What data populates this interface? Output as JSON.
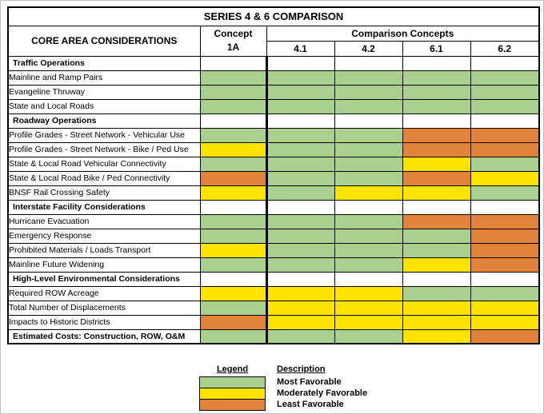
{
  "title": "SERIES 4 & 6 COMPARISON",
  "header": {
    "core": "CORE AREA CONSIDERATIONS",
    "concept_line1": "Concept",
    "concept_line2": "1A",
    "comparison": "Comparison Concepts",
    "columns": [
      "4.1",
      "4.2",
      "6.1",
      "6.2"
    ]
  },
  "colors": {
    "most": "#a9d08e",
    "moderate": "#ffe300",
    "least": "#e2833c",
    "none": "#ffffff"
  },
  "chart_data": {
    "type": "table",
    "title": "SERIES 4 & 6 COMPARISON",
    "columns": [
      "Concept 1A",
      "4.1",
      "4.2",
      "6.1",
      "6.2"
    ],
    "rating_scale": {
      "most": "Most Favorable",
      "moderate": "Moderately Favorable",
      "least": "Least Favorable",
      "none": "blank"
    },
    "rows": [
      {
        "type": "section",
        "label": "Traffic Operations",
        "cells": [
          "none",
          "none",
          "none",
          "none",
          "none"
        ]
      },
      {
        "type": "data",
        "label": "Mainline and Ramp Pairs",
        "cells": [
          "most",
          "most",
          "most",
          "most",
          "most"
        ]
      },
      {
        "type": "data",
        "label": "Evangeline Thruway",
        "cells": [
          "most",
          "most",
          "most",
          "most",
          "most"
        ]
      },
      {
        "type": "data",
        "label": "State and Local Roads",
        "cells": [
          "most",
          "most",
          "most",
          "most",
          "most"
        ]
      },
      {
        "type": "section",
        "label": "Roadway Operations",
        "cells": [
          "none",
          "none",
          "none",
          "none",
          "none"
        ]
      },
      {
        "type": "data",
        "label": "Profile Grades - Street Network - Vehicular Use",
        "cells": [
          "most",
          "most",
          "most",
          "least",
          "least"
        ]
      },
      {
        "type": "data",
        "label": "Profile Grades - Street Network - Bike / Ped Use",
        "cells": [
          "moderate",
          "most",
          "most",
          "least",
          "least"
        ]
      },
      {
        "type": "data",
        "label": "State & Local Road Vehicular Connectivity",
        "cells": [
          "most",
          "most",
          "most",
          "moderate",
          "most"
        ]
      },
      {
        "type": "data",
        "label": "State & Local Road Bike / Ped Connectivity",
        "cells": [
          "least",
          "most",
          "most",
          "least",
          "moderate"
        ]
      },
      {
        "type": "data",
        "label": "BNSF Rail Crossing Safety",
        "cells": [
          "moderate",
          "most",
          "moderate",
          "moderate",
          "most"
        ]
      },
      {
        "type": "section",
        "label": "Interstate Facility Considerations",
        "cells": [
          "none",
          "none",
          "none",
          "none",
          "none"
        ]
      },
      {
        "type": "data",
        "label": "Hurricane Evacuation",
        "cells": [
          "most",
          "most",
          "most",
          "least",
          "least"
        ]
      },
      {
        "type": "data",
        "label": "Emergency Response",
        "cells": [
          "most",
          "most",
          "most",
          "most",
          "least"
        ]
      },
      {
        "type": "data",
        "label": "Prohibited Materials / Loads Transport",
        "cells": [
          "moderate",
          "most",
          "most",
          "most",
          "least"
        ]
      },
      {
        "type": "data",
        "label": "Mainline Future Widening",
        "cells": [
          "most",
          "most",
          "most",
          "moderate",
          "least"
        ]
      },
      {
        "type": "section",
        "label": "High-Level Environmental Considerations",
        "cells": [
          "none",
          "none",
          "none",
          "none",
          "none"
        ]
      },
      {
        "type": "data",
        "label": "Required ROW Acreage",
        "cells": [
          "moderate",
          "moderate",
          "moderate",
          "most",
          "most"
        ]
      },
      {
        "type": "data",
        "label": "Total Number of Displacements",
        "cells": [
          "most",
          "moderate",
          "moderate",
          "moderate",
          "moderate"
        ]
      },
      {
        "type": "data",
        "label": "Impacts to Historic Districts",
        "cells": [
          "least",
          "moderate",
          "moderate",
          "moderate",
          "moderate"
        ]
      },
      {
        "type": "total",
        "label": "Estimated Costs:  Construction, ROW, O&M",
        "cells": [
          "most",
          "most",
          "most",
          "moderate",
          "least"
        ]
      }
    ]
  },
  "legend": {
    "heading": "Legend",
    "description_heading": "Description",
    "items": [
      {
        "value": "most",
        "label": "Most Favorable"
      },
      {
        "value": "moderate",
        "label": "Moderately Favorable"
      },
      {
        "value": "least",
        "label": "Least Favorable"
      }
    ]
  }
}
